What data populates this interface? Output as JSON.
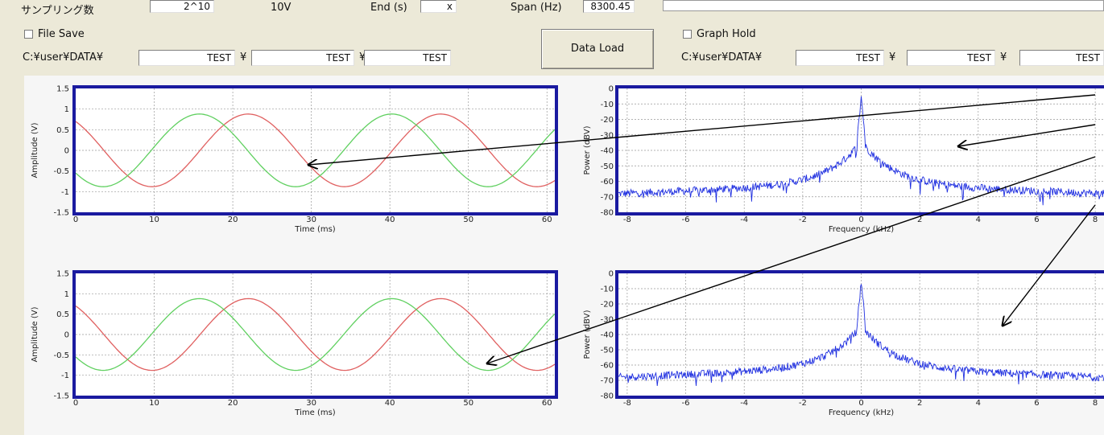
{
  "top_row": {
    "sampling_label": "サンプリング数",
    "sampling_value": "2^10",
    "range_value": "10V",
    "end_label": "End (s)",
    "end_value": "x",
    "span_label": "Span (Hz)",
    "span_value": "8300.45"
  },
  "file_save": {
    "checkbox_label": "File Save",
    "path_label": "C:¥user¥DATA¥",
    "sep": "¥",
    "fields": [
      "TEST",
      "TEST",
      "TEST"
    ]
  },
  "data_load_button": "Data Load",
  "graph_hold": {
    "checkbox_label": "Graph Hold",
    "path_label": "C:¥user¥DATA¥",
    "sep": "¥",
    "fields": [
      "TEST",
      "TEST",
      "TEST"
    ]
  },
  "charts": {
    "time": {
      "xlabel": "Time (ms)",
      "ylabel": "Amplitude (V)",
      "xticks": [
        "0",
        "10",
        "20",
        "30",
        "40",
        "50",
        "60"
      ],
      "yticks": [
        "1.5",
        "1",
        "0.5",
        "0",
        "-0.5",
        "-1",
        "-1.5"
      ],
      "series_colors": [
        "#e06060",
        "#60d060"
      ]
    },
    "freq": {
      "xlabel": "Frequency (kHz)",
      "ylabel": "Power (dBV)",
      "xticks": [
        "-8",
        "-6",
        "-4",
        "-2",
        "0",
        "2",
        "4",
        "6",
        "8"
      ],
      "yticks": [
        "0",
        "-10",
        "-20",
        "-30",
        "-40",
        "-50",
        "-60",
        "-70",
        "-80"
      ],
      "series_color": "#2030e0"
    }
  },
  "chart_data": [
    {
      "type": "line",
      "title": "",
      "xlabel": "Time (ms)",
      "ylabel": "Amplitude (V)",
      "xlim": [
        0,
        61
      ],
      "ylim": [
        -1.5,
        1.5
      ],
      "grid": true,
      "series": [
        {
          "values_desc": "sine, amplitude 0.9, period 24.5 ms, starts 0.7 at t=0 descending"
        },
        {
          "values_desc": "sine, amplitude 0.9, period 24.5 ms, starts -0.55 at t=0 descending"
        }
      ],
      "x": [
        0,
        5,
        10,
        15,
        20,
        25,
        30,
        35,
        40,
        45,
        50,
        55,
        60
      ]
    },
    {
      "type": "line",
      "title": "",
      "xlabel": "Frequency (kHz)",
      "ylabel": "Power (dBV)",
      "xlim": [
        -8,
        8
      ],
      "ylim": [
        -80,
        0
      ],
      "grid": true,
      "x": [
        -8,
        -6,
        -4,
        -2,
        -1,
        0,
        1,
        2,
        4,
        6,
        8
      ],
      "values": [
        -67,
        -66,
        -63,
        -58,
        -52,
        -5,
        -52,
        -58,
        -63,
        -66,
        -67
      ]
    },
    {
      "type": "line",
      "title": "",
      "xlabel": "Time (ms)",
      "ylabel": "Amplitude (V)",
      "xlim": [
        0,
        61
      ],
      "ylim": [
        -1.5,
        1.5
      ],
      "grid": true
    },
    {
      "type": "line",
      "title": "",
      "xlabel": "Frequency (kHz)",
      "ylabel": "Power (dBV)",
      "xlim": [
        -8,
        8
      ],
      "ylim": [
        -80,
        0
      ],
      "grid": true,
      "x": [
        -8,
        -6,
        -4,
        -2,
        -1,
        0,
        1,
        2,
        4,
        6,
        8
      ],
      "values": [
        -67,
        -66,
        -63,
        -58,
        -52,
        -5,
        -52,
        -58,
        -63,
        -66,
        -67
      ]
    }
  ]
}
